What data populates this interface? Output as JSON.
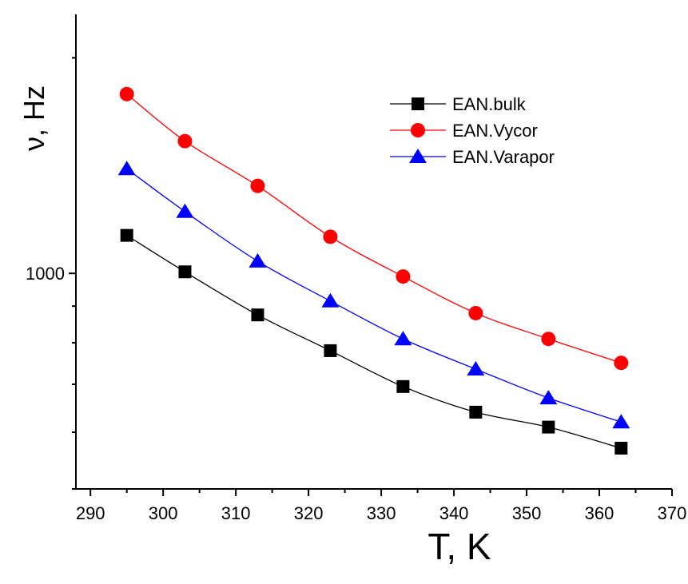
{
  "chart_data": {
    "type": "line",
    "xlabel": "T, K",
    "ylabel": "ν, Hz",
    "xlim": [
      288,
      370
    ],
    "ylim": [
      500,
      2300
    ],
    "yscale": "log",
    "xticks": [
      "290",
      "300",
      "310",
      "320",
      "330",
      "340",
      "350",
      "360",
      "370"
    ],
    "yticks_labeled": [
      "1000"
    ],
    "x": [
      295,
      303,
      313,
      323,
      333,
      343,
      353,
      363
    ],
    "series": [
      {
        "name": "EAN.bulk",
        "color": "#000000",
        "marker": "square",
        "values": [
          1130,
          1005,
          875,
          780,
          695,
          640,
          610,
          570
        ]
      },
      {
        "name": "EAN.Vycor",
        "color": "#ff0000",
        "marker": "circle",
        "values": [
          1780,
          1530,
          1325,
          1125,
          990,
          880,
          810,
          750
        ]
      },
      {
        "name": "EAN.Varapor",
        "color": "#0000ff",
        "marker": "triangle",
        "values": [
          1400,
          1220,
          1040,
          915,
          810,
          735,
          670,
          620
        ]
      }
    ],
    "legend_position": "top-right",
    "grid": false
  }
}
